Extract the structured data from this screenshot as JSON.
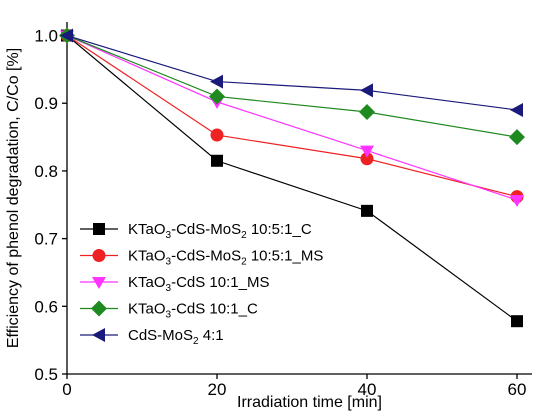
{
  "chart_data": {
    "type": "line",
    "xlabel": "Irradiation time [min]",
    "ylabel": "Efficiency of phenol degradation, C/Co [%]",
    "xlim": [
      0,
      62
    ],
    "ylim": [
      0.5,
      1.02
    ],
    "xticks": [
      0,
      20,
      40,
      60
    ],
    "yticks": [
      0.5,
      0.6,
      0.7,
      0.8,
      0.9,
      1.0
    ],
    "xtick_labels": [
      "0",
      "20",
      "40",
      "60"
    ],
    "ytick_labels": [
      "0.5",
      "0.6",
      "0.7",
      "0.8",
      "0.9",
      "1.0"
    ],
    "x": [
      0,
      20,
      40,
      60
    ],
    "grid": false,
    "legend_position": "bottom-left",
    "series": [
      {
        "name": "KTaO3-CdS-MoS2 10:5:1_C",
        "name_parts": [
          [
            "KTaO",
            ""
          ],
          [
            "3",
            "sub"
          ],
          [
            "-CdS-MoS",
            ""
          ],
          [
            "2",
            "sub"
          ],
          [
            " 10:5:1_C",
            ""
          ]
        ],
        "values": [
          1.0,
          0.815,
          0.741,
          0.578
        ],
        "color": "#000000",
        "marker": "square"
      },
      {
        "name": "KTaO3-CdS-MoS2 10:5:1_MS",
        "name_parts": [
          [
            "KTaO",
            ""
          ],
          [
            "3",
            "sub"
          ],
          [
            "-CdS-MoS",
            ""
          ],
          [
            "2",
            "sub"
          ],
          [
            " 10:5:1_MS",
            ""
          ]
        ],
        "values": [
          1.0,
          0.853,
          0.818,
          0.762
        ],
        "color": "#ee2222",
        "marker": "circle"
      },
      {
        "name": "KTaO3-CdS 10:1_MS",
        "name_parts": [
          [
            "KTaO",
            ""
          ],
          [
            "3",
            "sub"
          ],
          [
            "-CdS 10:1_MS",
            ""
          ]
        ],
        "values": [
          1.0,
          0.902,
          0.83,
          0.757
        ],
        "color": "#ff33ff",
        "marker": "triangle-down"
      },
      {
        "name": "KTaO3-CdS 10:1_C",
        "name_parts": [
          [
            "KTaO",
            ""
          ],
          [
            "3",
            "sub"
          ],
          [
            "-CdS 10:1_C",
            ""
          ]
        ],
        "values": [
          1.0,
          0.91,
          0.887,
          0.85
        ],
        "color": "#1f8a1f",
        "marker": "diamond"
      },
      {
        "name": "CdS-MoS2 4:1",
        "name_parts": [
          [
            "CdS-MoS",
            ""
          ],
          [
            "2",
            "sub"
          ],
          [
            " 4:1",
            ""
          ]
        ],
        "values": [
          1.0,
          0.932,
          0.919,
          0.89
        ],
        "color": "#1a1a7a",
        "marker": "triangle-left"
      }
    ]
  }
}
